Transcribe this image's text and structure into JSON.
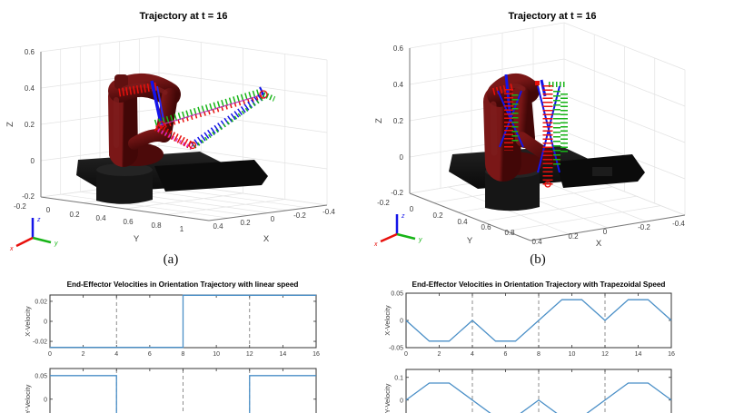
{
  "colors": {
    "line": "#4a8fc7",
    "dashed": "#808080",
    "traj_red": "#e8100c",
    "traj_green": "#17b417",
    "traj_blue": "#1414e8",
    "robot_maroon": "#5a0e0e",
    "robot_base_black": "#141414"
  },
  "figure": {
    "panels": [
      {
        "title": "Trajectory at t = 16",
        "caption": "(a)",
        "xlabel": "X",
        "ylabel": "Y",
        "zlabel": "Z",
        "z_ticks": [
          "0.6",
          "0.4",
          "0.2",
          "0",
          "-0.2"
        ],
        "y_ticks": [
          "-0.2",
          "0",
          "0.2",
          "0.4",
          "0.6",
          "0.8",
          "1"
        ],
        "x_ticks": [
          "0.4",
          "0.2",
          "0",
          "-0.2",
          "-0.4"
        ],
        "triad": {
          "x": "x",
          "y": "y",
          "z": "z"
        }
      },
      {
        "title": "Trajectory at t = 16",
        "caption": "(b)",
        "xlabel": "X",
        "ylabel": "Y",
        "zlabel": "Z",
        "z_ticks": [
          "0.6",
          "0.4",
          "0.2",
          "0",
          "-0.2"
        ],
        "y_ticks": [
          "-0.2",
          "0",
          "0.2",
          "0.4",
          "0.6",
          "0.8"
        ],
        "x_ticks": [
          "0.4",
          "0.2",
          "0",
          "-0.2",
          "-0.4"
        ],
        "triad": {
          "x": "x",
          "y": "y",
          "z": "z"
        }
      }
    ]
  },
  "chart_data": [
    {
      "type": "line",
      "title": "End-Effector Velocities in Orientation Trajectory with linear speed",
      "legend": "none",
      "subplots": [
        {
          "ylabel": "X-Velocity",
          "xlim": [
            0,
            16
          ],
          "ylim": [
            -0.0263,
            0.0263
          ],
          "xticks": [
            0,
            2,
            4,
            6,
            8,
            10,
            12,
            14,
            16
          ],
          "yticks": [
            -0.02,
            0,
            0.02
          ],
          "dashed_x": [
            4,
            8,
            12
          ],
          "show_xlabels": true,
          "x": [
            0,
            8,
            8,
            16
          ],
          "y": [
            -0.026,
            -0.026,
            0.026,
            0.026
          ]
        },
        {
          "ylabel": "Y-Velocity",
          "xlim": [
            0,
            16
          ],
          "ylim": [
            -0.062,
            0.065
          ],
          "xticks": [
            0,
            2,
            4,
            6,
            8,
            10,
            12,
            14,
            16
          ],
          "yticks": [
            0,
            0.05
          ],
          "dashed_x": [
            4,
            8,
            12
          ],
          "show_xlabels": false,
          "x": [
            0,
            4,
            4,
            12,
            12,
            16
          ],
          "y": [
            0.05,
            0.05,
            -0.05,
            -0.05,
            0.05,
            0.05
          ]
        }
      ]
    },
    {
      "type": "line",
      "title": "End-Effector Velocities in Orientation Trajectory  with Trapezoidal Speed",
      "legend": "none",
      "subplots": [
        {
          "ylabel": "X-Velocity",
          "xlim": [
            0,
            16
          ],
          "ylim": [
            -0.05,
            0.05
          ],
          "xticks": [
            0,
            2,
            4,
            6,
            8,
            10,
            12,
            14,
            16
          ],
          "yticks": [
            -0.05,
            0,
            0.05
          ],
          "dashed_x": [
            4,
            8,
            12
          ],
          "show_xlabels": true,
          "x": [
            0,
            1.4,
            2.6,
            4,
            5.4,
            6.6,
            9.4,
            10.6,
            12,
            13.4,
            14.6,
            16
          ],
          "y": [
            0,
            -0.038,
            -0.038,
            0,
            -0.038,
            -0.038,
            0.038,
            0.038,
            0,
            0.038,
            0.038,
            0
          ]
        },
        {
          "ylabel": "Y-Velocity",
          "xlim": [
            0,
            16
          ],
          "ylim": [
            -0.121,
            0.135
          ],
          "xticks": [
            0,
            2,
            4,
            6,
            8,
            10,
            12,
            14,
            16
          ],
          "yticks": [
            0,
            0.1
          ],
          "dashed_x": [
            4,
            8,
            12
          ],
          "show_xlabels": false,
          "x": [
            0,
            1.4,
            2.6,
            5.4,
            6.6,
            8,
            9.4,
            10.6,
            12,
            13.4,
            14.6,
            16
          ],
          "y": [
            0,
            0.075,
            0.075,
            -0.075,
            -0.075,
            0,
            -0.075,
            -0.075,
            0,
            0.075,
            0.075,
            0
          ]
        }
      ]
    }
  ]
}
